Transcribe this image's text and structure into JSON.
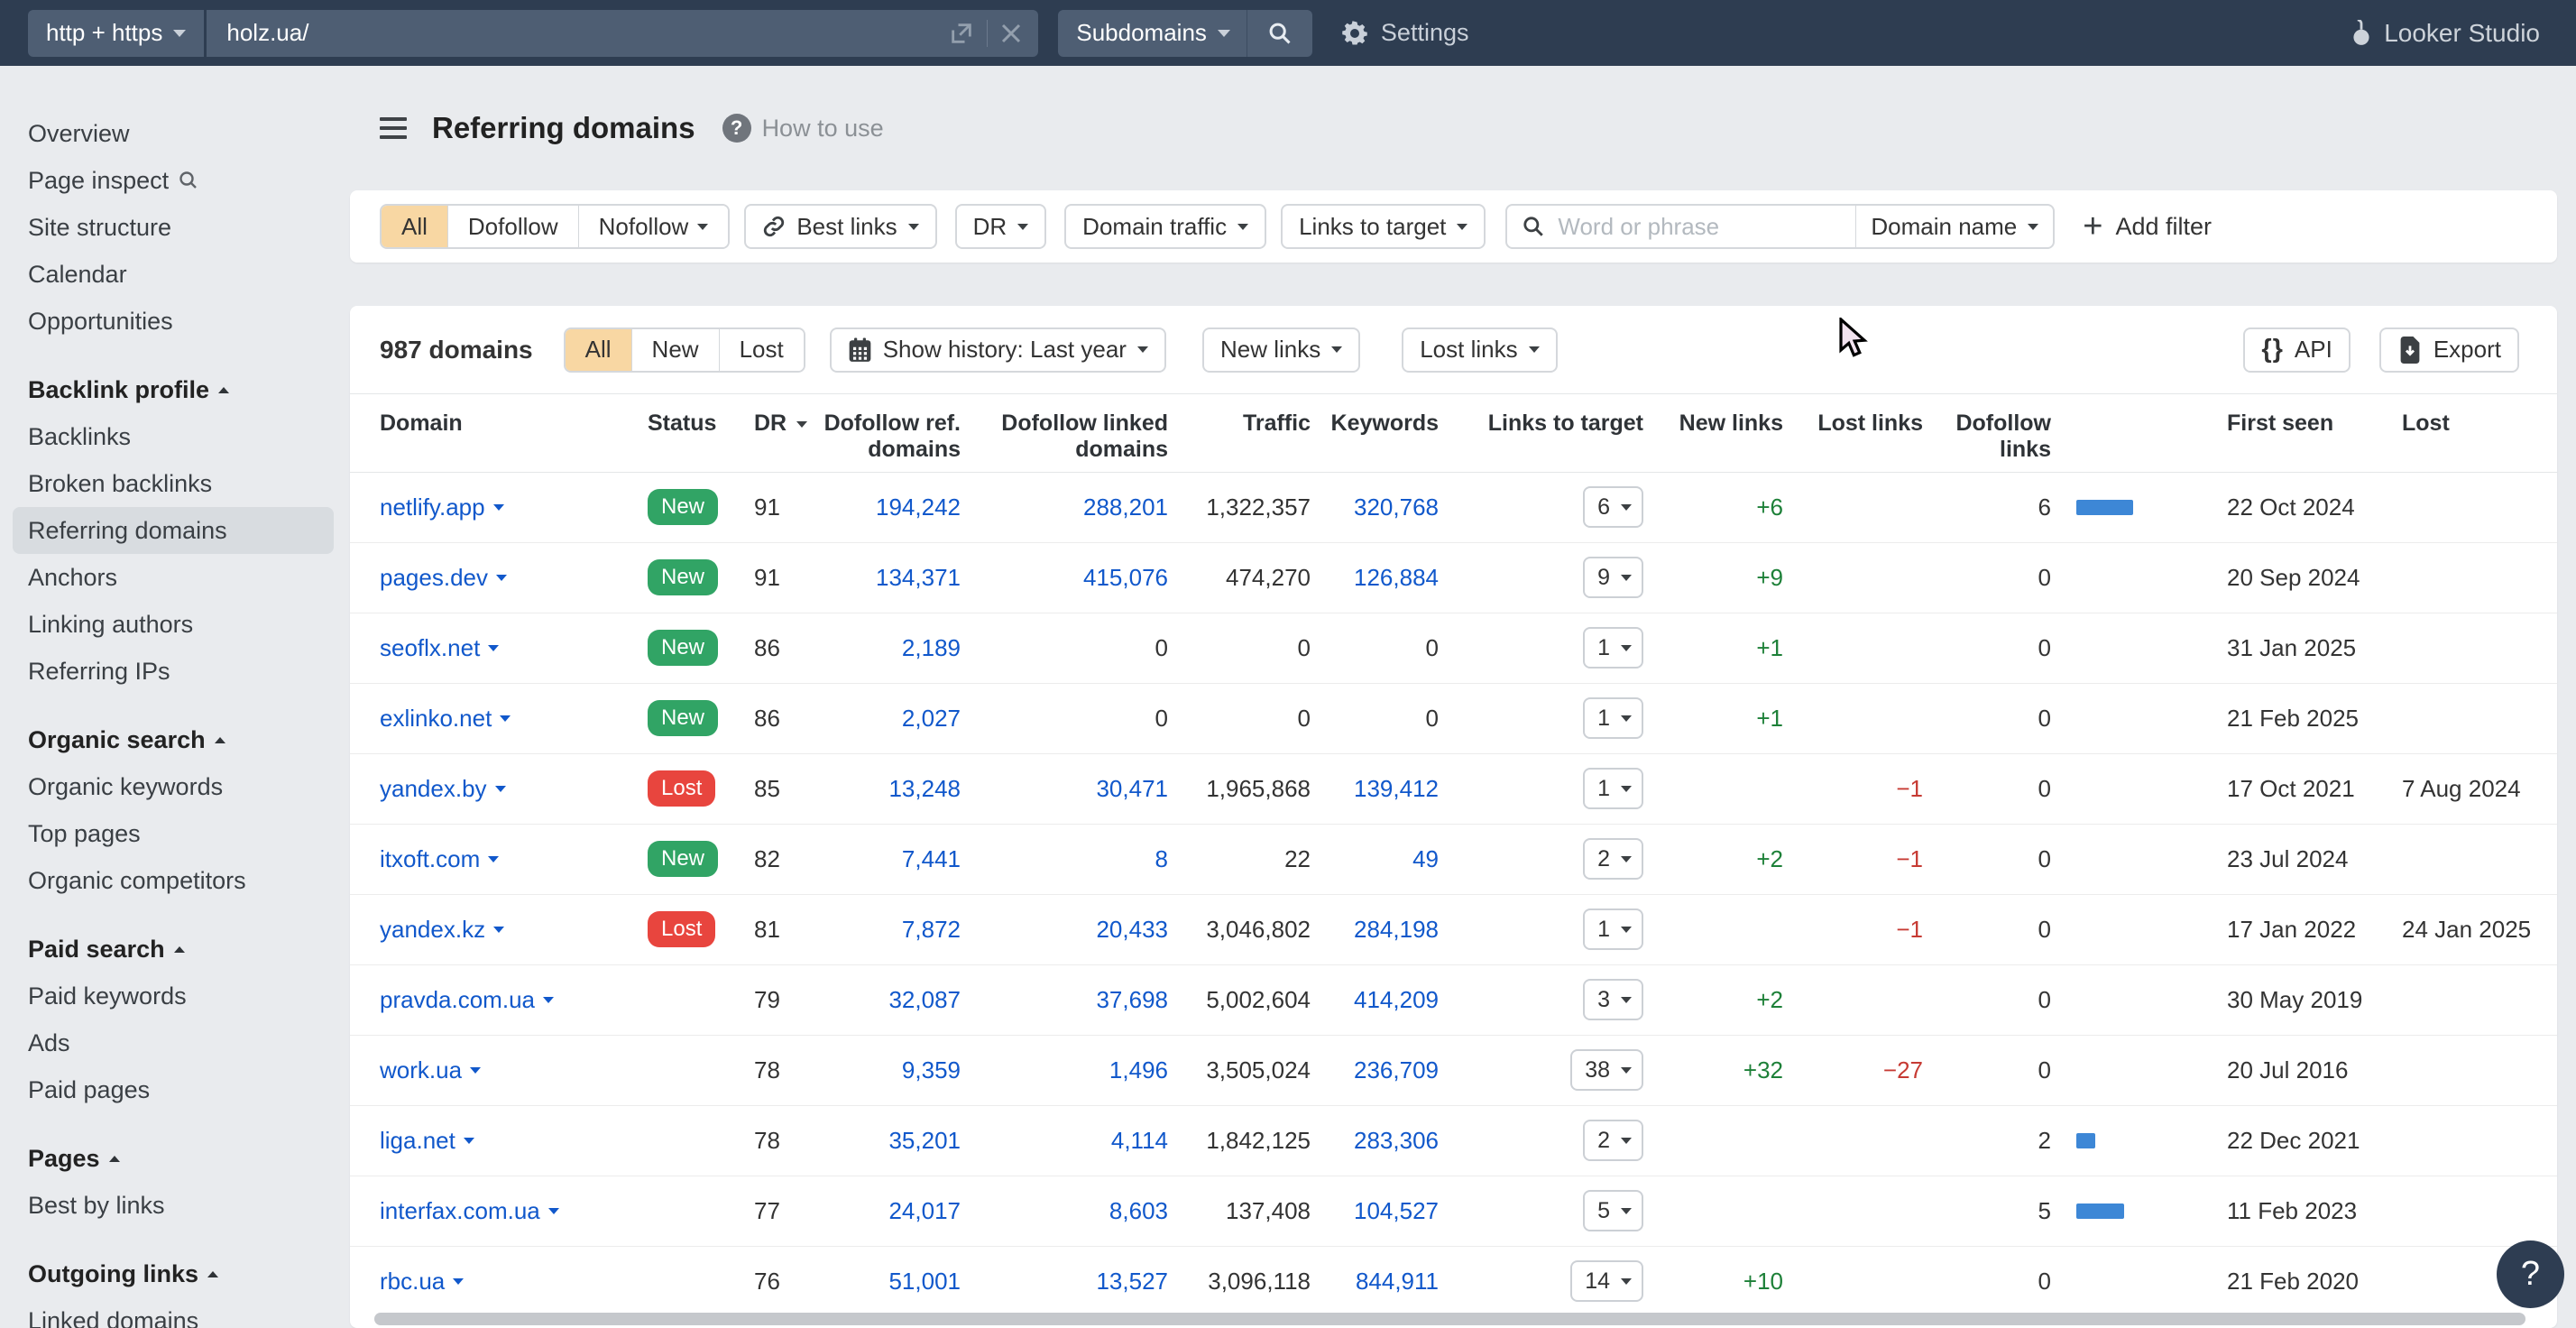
{
  "topbar": {
    "protocol": "http + https",
    "url": "holz.ua/",
    "scope": "Subdomains",
    "settings_label": "Settings",
    "brand": "Looker Studio"
  },
  "sidebar": {
    "sections": [
      {
        "heading": null,
        "items": [
          {
            "label": "Overview"
          },
          {
            "label": "Page inspect",
            "icon": "search"
          },
          {
            "label": "Site structure"
          },
          {
            "label": "Calendar"
          },
          {
            "label": "Opportunities"
          }
        ]
      },
      {
        "heading": "Backlink profile",
        "items": [
          {
            "label": "Backlinks"
          },
          {
            "label": "Broken backlinks"
          },
          {
            "label": "Referring domains",
            "selected": true
          },
          {
            "label": "Anchors"
          },
          {
            "label": "Linking authors"
          },
          {
            "label": "Referring IPs"
          }
        ]
      },
      {
        "heading": "Organic search",
        "items": [
          {
            "label": "Organic keywords"
          },
          {
            "label": "Top pages"
          },
          {
            "label": "Organic competitors"
          }
        ]
      },
      {
        "heading": "Paid search",
        "items": [
          {
            "label": "Paid keywords"
          },
          {
            "label": "Ads"
          },
          {
            "label": "Paid pages"
          }
        ]
      },
      {
        "heading": "Pages",
        "items": [
          {
            "label": "Best by links"
          }
        ]
      },
      {
        "heading": "Outgoing links",
        "items": [
          {
            "label": "Linked domains"
          }
        ]
      }
    ]
  },
  "header": {
    "title": "Referring domains",
    "howto": "How to use"
  },
  "filters": {
    "mode_segments": [
      "All",
      "Dofollow",
      "Nofollow"
    ],
    "selected_mode": "All",
    "best_links": "Best links",
    "dr": "DR",
    "domain_traffic": "Domain traffic",
    "links_to_target": "Links to target",
    "search_placeholder": "Word or phrase",
    "search_scope": "Domain name",
    "add_filter": "Add filter"
  },
  "toolbar": {
    "count": "987 domains",
    "segments": [
      "All",
      "New",
      "Lost"
    ],
    "selected_segment": "All",
    "show_history": "Show history: Last year",
    "new_links": "New links",
    "lost_links": "Lost links",
    "api": "API",
    "export": "Export"
  },
  "table": {
    "columns": [
      "Domain",
      "Status",
      "DR",
      "Dofollow ref. domains",
      "Dofollow linked domains",
      "Traffic",
      "Keywords",
      "Links to target",
      "New links",
      "Lost links",
      "Dofollow links",
      "First seen",
      "Lost"
    ],
    "rows": [
      {
        "domain": "netlify.app",
        "status": "New",
        "dr": "91",
        "dofollow_ref": "194,242",
        "dofollow_linked": "288,201",
        "traffic": "1,322,357",
        "keywords": "320,768",
        "links_to_target": "6",
        "new_links": "+6",
        "lost_links": "",
        "dofollow_links": "6",
        "first_seen": "22 Oct 2024",
        "lost": ""
      },
      {
        "domain": "pages.dev",
        "status": "New",
        "dr": "91",
        "dofollow_ref": "134,371",
        "dofollow_linked": "415,076",
        "traffic": "474,270",
        "keywords": "126,884",
        "links_to_target": "9",
        "new_links": "+9",
        "lost_links": "",
        "dofollow_links": "0",
        "first_seen": "20 Sep 2024",
        "lost": ""
      },
      {
        "domain": "seoflx.net",
        "status": "New",
        "dr": "86",
        "dofollow_ref": "2,189",
        "dofollow_linked": "0",
        "traffic": "0",
        "keywords": "0",
        "links_to_target": "1",
        "new_links": "+1",
        "lost_links": "",
        "dofollow_links": "0",
        "first_seen": "31 Jan 2025",
        "lost": ""
      },
      {
        "domain": "exlinko.net",
        "status": "New",
        "dr": "86",
        "dofollow_ref": "2,027",
        "dofollow_linked": "0",
        "traffic": "0",
        "keywords": "0",
        "links_to_target": "1",
        "new_links": "+1",
        "lost_links": "",
        "dofollow_links": "0",
        "first_seen": "21 Feb 2025",
        "lost": ""
      },
      {
        "domain": "yandex.by",
        "status": "Lost",
        "dr": "85",
        "dofollow_ref": "13,248",
        "dofollow_linked": "30,471",
        "traffic": "1,965,868",
        "keywords": "139,412",
        "links_to_target": "1",
        "new_links": "",
        "lost_links": "−1",
        "dofollow_links": "0",
        "first_seen": "17 Oct 2021",
        "lost": "7 Aug 2024"
      },
      {
        "domain": "itxoft.com",
        "status": "New",
        "dr": "82",
        "dofollow_ref": "7,441",
        "dofollow_linked": "8",
        "traffic": "22",
        "keywords": "49",
        "links_to_target": "2",
        "new_links": "+2",
        "lost_links": "−1",
        "dofollow_links": "0",
        "first_seen": "23 Jul 2024",
        "lost": ""
      },
      {
        "domain": "yandex.kz",
        "status": "Lost",
        "dr": "81",
        "dofollow_ref": "7,872",
        "dofollow_linked": "20,433",
        "traffic": "3,046,802",
        "keywords": "284,198",
        "links_to_target": "1",
        "new_links": "",
        "lost_links": "−1",
        "dofollow_links": "0",
        "first_seen": "17 Jan 2022",
        "lost": "24 Jan 2025"
      },
      {
        "domain": "pravda.com.ua",
        "status": "",
        "dr": "79",
        "dofollow_ref": "32,087",
        "dofollow_linked": "37,698",
        "traffic": "5,002,604",
        "keywords": "414,209",
        "links_to_target": "3",
        "new_links": "+2",
        "lost_links": "",
        "dofollow_links": "0",
        "first_seen": "30 May 2019",
        "lost": ""
      },
      {
        "domain": "work.ua",
        "status": "",
        "dr": "78",
        "dofollow_ref": "9,359",
        "dofollow_linked": "1,496",
        "traffic": "3,505,024",
        "keywords": "236,709",
        "links_to_target": "38",
        "new_links": "+32",
        "lost_links": "−27",
        "dofollow_links": "0",
        "first_seen": "20 Jul 2016",
        "lost": ""
      },
      {
        "domain": "liga.net",
        "status": "",
        "dr": "78",
        "dofollow_ref": "35,201",
        "dofollow_linked": "4,114",
        "traffic": "1,842,125",
        "keywords": "283,306",
        "links_to_target": "2",
        "new_links": "",
        "lost_links": "",
        "dofollow_links": "2",
        "first_seen": "22 Dec 2021",
        "lost": ""
      },
      {
        "domain": "interfax.com.ua",
        "status": "",
        "dr": "77",
        "dofollow_ref": "24,017",
        "dofollow_linked": "8,603",
        "traffic": "137,408",
        "keywords": "104,527",
        "links_to_target": "5",
        "new_links": "",
        "lost_links": "",
        "dofollow_links": "5",
        "first_seen": "11 Feb 2023",
        "lost": ""
      },
      {
        "domain": "rbc.ua",
        "status": "",
        "dr": "76",
        "dofollow_ref": "51,001",
        "dofollow_linked": "13,527",
        "traffic": "3,096,118",
        "keywords": "844,911",
        "links_to_target": "14",
        "new_links": "+10",
        "lost_links": "",
        "dofollow_links": "0",
        "first_seen": "21 Feb 2020",
        "lost": ""
      }
    ]
  },
  "colors": {
    "topbar": "#2e3d51",
    "selected_segment": "#f8d7a3",
    "badge_new": "#31a465",
    "badge_lost": "#e8453e",
    "link": "#1158cb",
    "positive": "#1d8038",
    "negative": "#c63a33",
    "bar": "#3d87d6"
  }
}
